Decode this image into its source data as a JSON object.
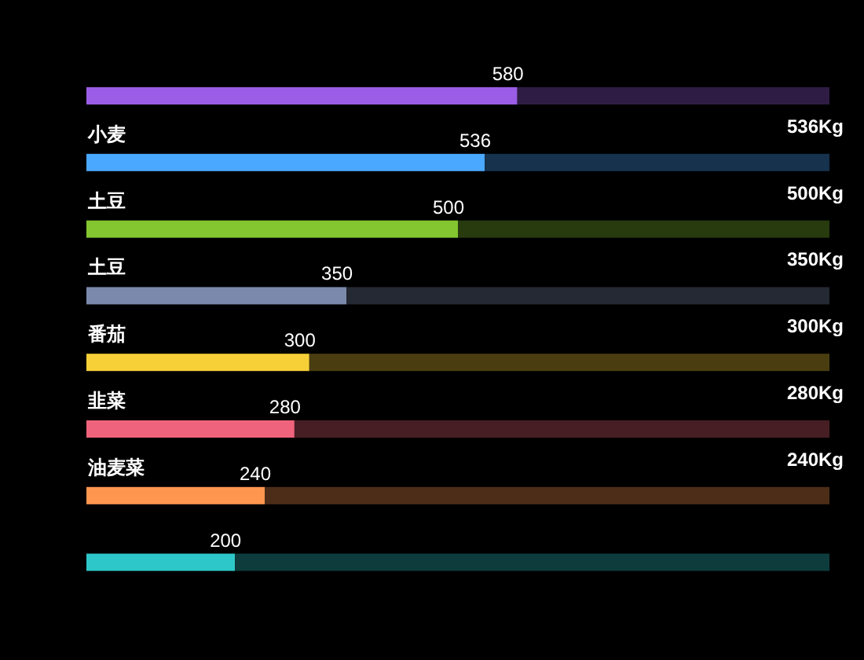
{
  "chart_data": {
    "type": "bar",
    "orientation": "horizontal",
    "stacked": true,
    "categories": [
      null,
      "小麦",
      "土豆",
      "土豆",
      "番茄",
      "韭菜",
      "油麦菜",
      null
    ],
    "series": [
      {
        "values": [
          580,
          536,
          500,
          350,
          300,
          280,
          240,
          200
        ],
        "colors": [
          "#9b5de5",
          "#4aa8ff",
          "#83c630",
          "#7b8aab",
          "#f7d038",
          "#f0637c",
          "#ff9650",
          "#2ec7c9"
        ],
        "value_labels": [
          "580",
          "536",
          "500",
          "350",
          "300",
          "280",
          "240",
          "200"
        ]
      },
      {
        "values": [
          420,
          464,
          500,
          650,
          700,
          720,
          760,
          800
        ],
        "colors": [
          "#2f1c45",
          "#16324d",
          "#273b0e",
          "#252933",
          "#4a3e11",
          "#481e25",
          "#4d2d18",
          "#0e3c3c"
        ]
      }
    ],
    "xlim": [
      0,
      1000
    ],
    "annotations": [
      "536Kg",
      "500Kg",
      "350Kg",
      "300Kg",
      "280Kg",
      "240Kg"
    ]
  }
}
